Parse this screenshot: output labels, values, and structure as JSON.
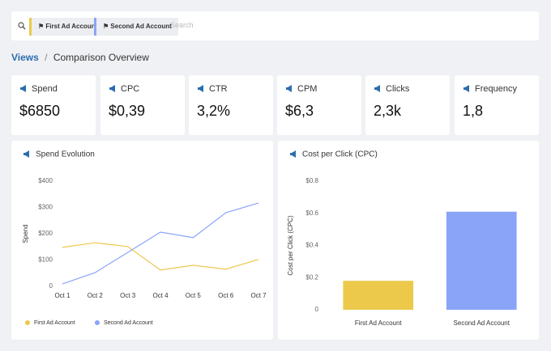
{
  "filter_bar": {
    "chips": [
      {
        "label": "First Ad Account",
        "color": "#ecc94b"
      },
      {
        "label": "Second Ad Account",
        "color": "#8aa4f8"
      }
    ],
    "search_placeholder": "Search"
  },
  "breadcrumb": {
    "root": "Views",
    "separator": "/",
    "current": "Comparison Overview"
  },
  "kpis": [
    {
      "label": "Spend",
      "value": "$6850"
    },
    {
      "label": "CPC",
      "value": "$0,39"
    },
    {
      "label": "CTR",
      "value": "3,2%"
    },
    {
      "label": "CPM",
      "value": "$6,3"
    },
    {
      "label": "Clicks",
      "value": "2,3k"
    },
    {
      "label": "Frequency",
      "value": "1,8"
    }
  ],
  "chart_data": [
    {
      "type": "line",
      "title": "Spend Evolution",
      "y_label": "Spend",
      "categories": [
        "Oct 1",
        "Oct 2",
        "Oct 3",
        "Oct 4",
        "Oct 5",
        "Oct 6",
        "Oct 7"
      ],
      "series": [
        {
          "name": "First Ad Account",
          "color": "#ecc94b",
          "values": [
            148,
            166,
            151,
            62,
            80,
            65,
            102
          ]
        },
        {
          "name": "Second Ad Account",
          "color": "#8aa4f8",
          "values": [
            9,
            52,
            129,
            206,
            185,
            280,
            317
          ]
        }
      ],
      "ylim": [
        0,
        400
      ],
      "yticks": [
        0,
        {
          "value": 100,
          "label": "$100"
        },
        {
          "value": 200,
          "label": "$200"
        },
        {
          "value": 300,
          "label": "$300"
        },
        {
          "value": 400,
          "label": "$400"
        }
      ],
      "grid": false,
      "legend": "bottom-left"
    },
    {
      "type": "bar",
      "title": "Cost per Click (CPC)",
      "y_label": "Cost per Click (CPC)",
      "categories": [
        "First Ad Account",
        "Second Ad Account"
      ],
      "values": [
        0.18,
        0.61
      ],
      "colors": [
        "#ecc94b",
        "#8aa4f8"
      ],
      "ylim": [
        0,
        0.8
      ],
      "yticks": [
        0,
        {
          "value": 0.2,
          "label": "$0.2"
        },
        {
          "value": 0.4,
          "label": "$0.4"
        },
        {
          "value": 0.6,
          "label": "$0.6"
        },
        {
          "value": 0.8,
          "label": "$0.8"
        }
      ],
      "grid": false
    }
  ]
}
